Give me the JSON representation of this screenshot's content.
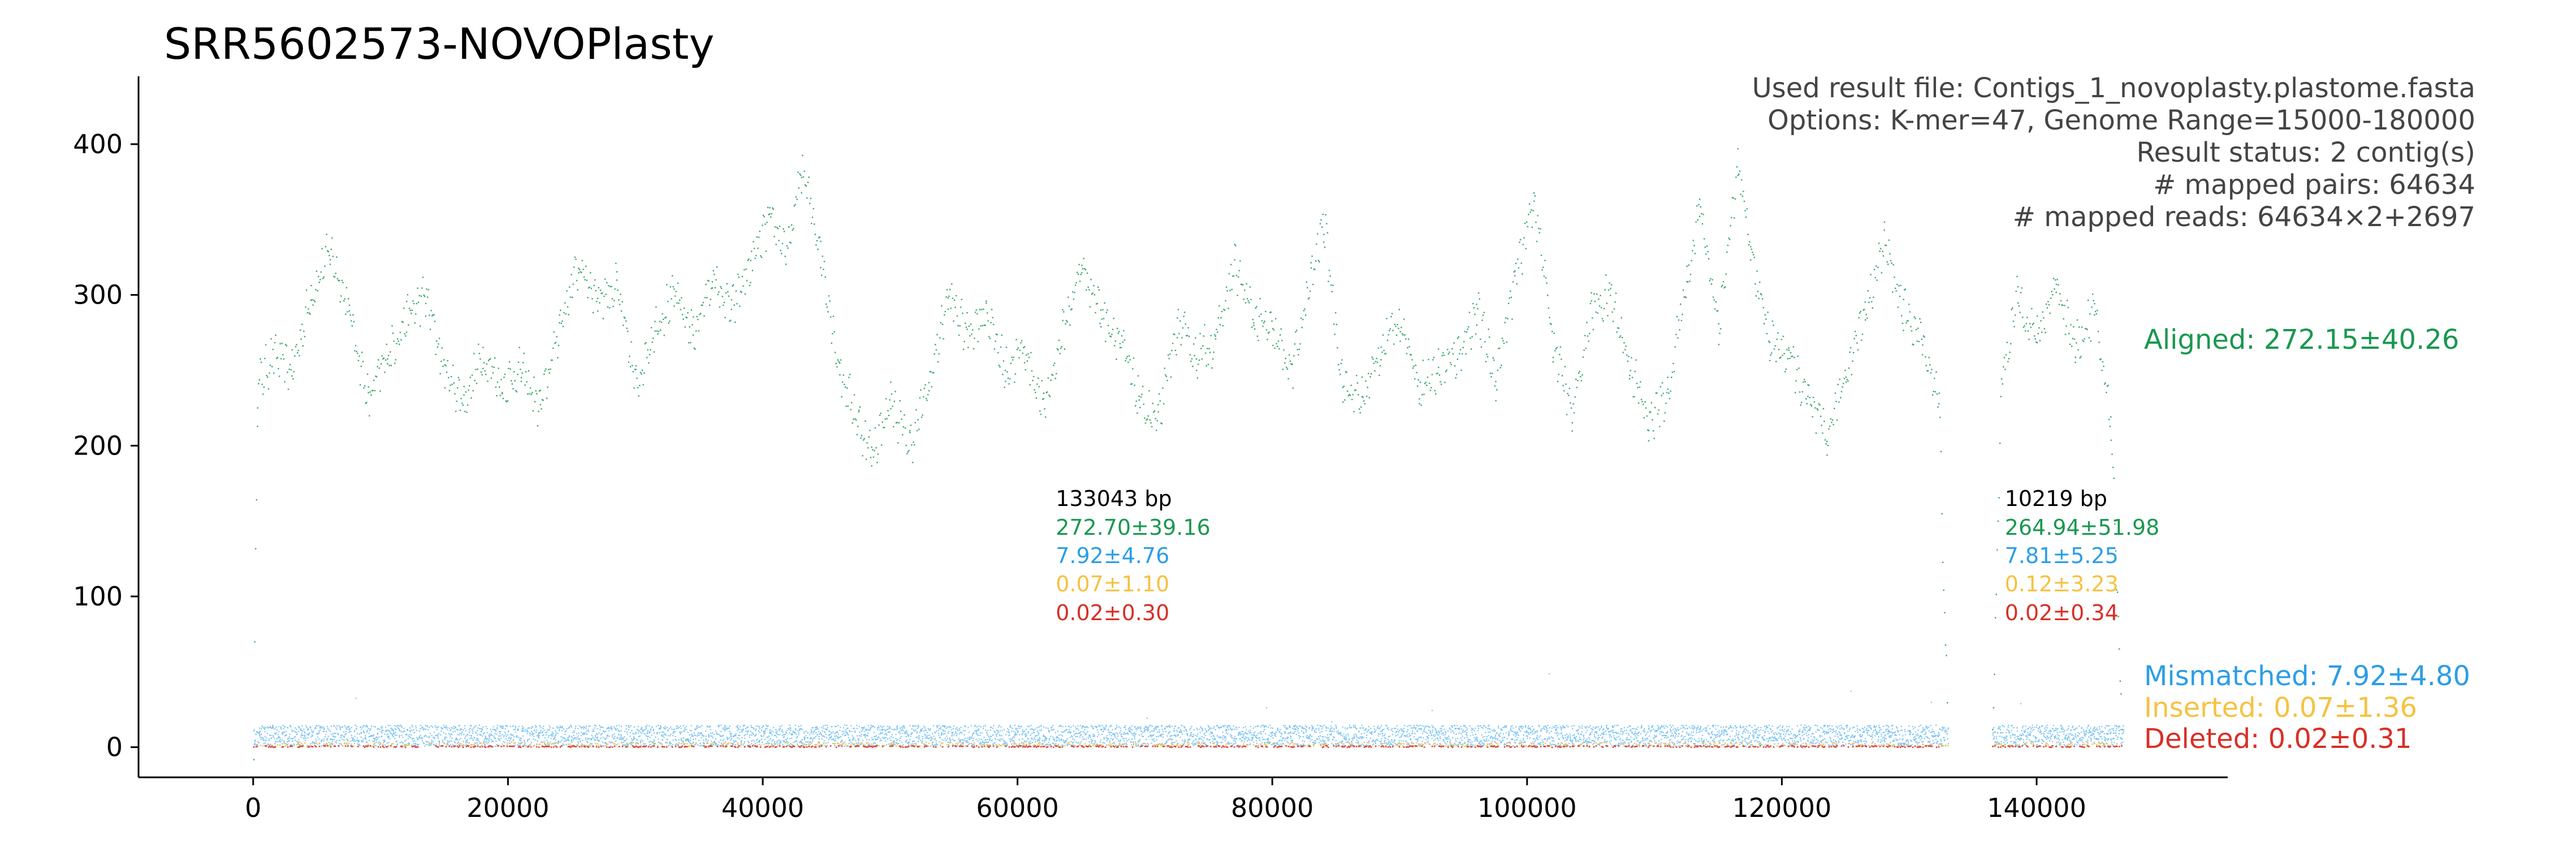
{
  "chart_data": {
    "type": "scatter",
    "title": "SRR5602573-NOVOPlasty",
    "xlabel": "",
    "ylabel": "",
    "xlim": [
      -9000,
      155000
    ],
    "ylim": [
      -20,
      445
    ],
    "x_ticks": [
      0,
      20000,
      40000,
      60000,
      80000,
      100000,
      120000,
      140000
    ],
    "y_ticks": [
      0,
      100,
      200,
      300,
      400
    ],
    "grid": false,
    "info_lines": [
      "Used result file: Contigs_1_novoplasty.plastome.fasta",
      "Options: K-mer=47, Genome Range=15000-180000",
      "Result status: 2 contig(s)",
      "# mapped pairs: 64634",
      "# mapped reads: 64634×2+2697"
    ],
    "series": [
      {
        "name": "Aligned",
        "summary": "Aligned: 272.15±40.26",
        "color": "#1a9850"
      },
      {
        "name": "Mismatched",
        "summary": "Mismatched: 7.92±4.80",
        "color": "#2c9ee6"
      },
      {
        "name": "Inserted",
        "summary": "Inserted: 0.07±1.36",
        "color": "#f5c242"
      },
      {
        "name": "Deleted",
        "summary": "Deleted: 0.02±0.31",
        "color": "#d73027"
      }
    ],
    "contigs": [
      {
        "start": 0,
        "end": 133043,
        "label_x": 63000,
        "length_label": "133043 bp",
        "aligned": "272.70±39.16",
        "mismatched": "7.92±4.76",
        "inserted": "0.07±1.10",
        "deleted": "0.02±0.30"
      },
      {
        "start": 136500,
        "end": 146719,
        "label_x": 137500,
        "length_label": "10219 bp",
        "aligned": "264.94±51.98",
        "mismatched": "7.81±5.25",
        "inserted": "0.12±3.23",
        "deleted": "0.02±0.34"
      }
    ],
    "aligned_profile": [
      [
        0,
        5
      ],
      [
        300,
        240
      ],
      [
        1500,
        260
      ],
      [
        3000,
        250
      ],
      [
        4500,
        300
      ],
      [
        6000,
        330
      ],
      [
        7500,
        290
      ],
      [
        9000,
        230
      ],
      [
        10500,
        260
      ],
      [
        12000,
        285
      ],
      [
        13500,
        300
      ],
      [
        15000,
        250
      ],
      [
        16500,
        230
      ],
      [
        18000,
        260
      ],
      [
        19500,
        240
      ],
      [
        21000,
        250
      ],
      [
        22500,
        225
      ],
      [
        24000,
        280
      ],
      [
        25500,
        320
      ],
      [
        27000,
        300
      ],
      [
        28500,
        305
      ],
      [
        30000,
        240
      ],
      [
        31500,
        280
      ],
      [
        33000,
        300
      ],
      [
        34500,
        275
      ],
      [
        36000,
        310
      ],
      [
        37500,
        290
      ],
      [
        39000,
        320
      ],
      [
        40500,
        350
      ],
      [
        42000,
        330
      ],
      [
        43000,
        385
      ],
      [
        44500,
        330
      ],
      [
        46000,
        250
      ],
      [
        47500,
        215
      ],
      [
        48500,
        195
      ],
      [
        50000,
        230
      ],
      [
        51500,
        200
      ],
      [
        53000,
        240
      ],
      [
        54500,
        300
      ],
      [
        56000,
        275
      ],
      [
        57500,
        290
      ],
      [
        59000,
        250
      ],
      [
        60500,
        265
      ],
      [
        62000,
        225
      ],
      [
        63500,
        275
      ],
      [
        65000,
        320
      ],
      [
        66500,
        290
      ],
      [
        68000,
        270
      ],
      [
        69500,
        230
      ],
      [
        71000,
        215
      ],
      [
        72500,
        280
      ],
      [
        74000,
        260
      ],
      [
        75500,
        270
      ],
      [
        77000,
        320
      ],
      [
        78500,
        285
      ],
      [
        80000,
        275
      ],
      [
        81500,
        250
      ],
      [
        83000,
        310
      ],
      [
        84000,
        350
      ],
      [
        85500,
        240
      ],
      [
        87000,
        230
      ],
      [
        88500,
        265
      ],
      [
        90000,
        285
      ],
      [
        91500,
        240
      ],
      [
        93000,
        250
      ],
      [
        94500,
        260
      ],
      [
        96000,
        290
      ],
      [
        97500,
        245
      ],
      [
        99000,
        310
      ],
      [
        100500,
        365
      ],
      [
        102000,
        270
      ],
      [
        103500,
        220
      ],
      [
        105000,
        290
      ],
      [
        106500,
        300
      ],
      [
        108000,
        255
      ],
      [
        109500,
        215
      ],
      [
        111000,
        235
      ],
      [
        112500,
        310
      ],
      [
        113500,
        360
      ],
      [
        115000,
        280
      ],
      [
        116500,
        385
      ],
      [
        117500,
        330
      ],
      [
        119000,
        270
      ],
      [
        120500,
        260
      ],
      [
        122000,
        230
      ],
      [
        123500,
        205
      ],
      [
        125000,
        250
      ],
      [
        126500,
        290
      ],
      [
        128000,
        335
      ],
      [
        129500,
        290
      ],
      [
        131000,
        270
      ],
      [
        132300,
        230
      ],
      [
        133000,
        5
      ],
      [
        136500,
        5
      ],
      [
        137200,
        245
      ],
      [
        138500,
        300
      ],
      [
        140000,
        270
      ],
      [
        141500,
        310
      ],
      [
        143000,
        265
      ],
      [
        144500,
        290
      ],
      [
        145800,
        215
      ],
      [
        146700,
        10
      ]
    ]
  }
}
